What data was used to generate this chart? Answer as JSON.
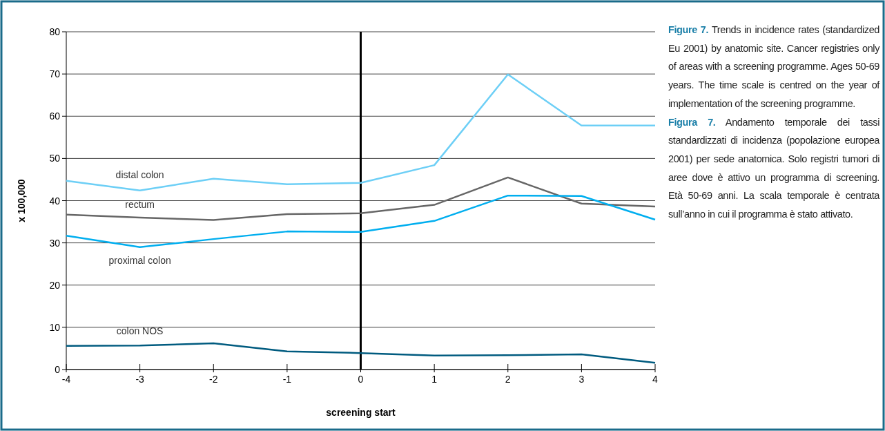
{
  "chart_data": {
    "type": "line",
    "xlabel": "screening start",
    "ylabel": "x 100,000",
    "x": [
      -4,
      -3,
      -2,
      -1,
      0,
      1,
      2,
      3,
      4
    ],
    "xlim": [
      -4,
      4
    ],
    "xticks": [
      -4,
      -3,
      -2,
      -1,
      0,
      1,
      2,
      3,
      4
    ],
    "ylim": [
      0,
      80
    ],
    "yticks": [
      0,
      10,
      20,
      30,
      40,
      50,
      60,
      70,
      80
    ],
    "grid": "y",
    "marker": "none",
    "line_style": "solid",
    "series": [
      {
        "name": "distal colon",
        "color": "#6dcff6",
        "values": [
          44.7,
          42.4,
          45.2,
          43.9,
          44.2,
          48.4,
          69.9,
          57.8,
          57.8
        ]
      },
      {
        "name": "rectum",
        "color": "#666666",
        "values": [
          36.7,
          36.0,
          35.4,
          36.8,
          37.0,
          39.0,
          45.5,
          39.3,
          38.6
        ]
      },
      {
        "name": "proximal colon",
        "color": "#00aeef",
        "values": [
          31.7,
          29.0,
          30.9,
          32.7,
          32.6,
          35.2,
          41.2,
          41.1,
          35.5
        ]
      },
      {
        "name": "colon NOS",
        "color": "#005b7f",
        "values": [
          5.6,
          5.7,
          6.2,
          4.3,
          3.9,
          3.3,
          3.4,
          3.6,
          1.6
        ]
      }
    ],
    "ref_lines": [
      {
        "axis": "x",
        "value": 0,
        "color": "#000000"
      }
    ],
    "annotations": [
      "Figure 7. Trends in incidence rates (standardized Eu 2001) by anatomic site. Cancer registries only of areas with a screening programme. Ages 50-69 years. The time scale is centred on the year of implementation of the screening programme.",
      "Figura 7. Andamento temporale dei tassi standardizzati di incidenza (popolazione europea 2001) per sede anatomica. Solo registri tumori di aree dove è attivo un programma di screening. Età 50-69 anni. La scala temporale è centrata sull’anno in cui il programma è stato attivato."
    ]
  }
}
